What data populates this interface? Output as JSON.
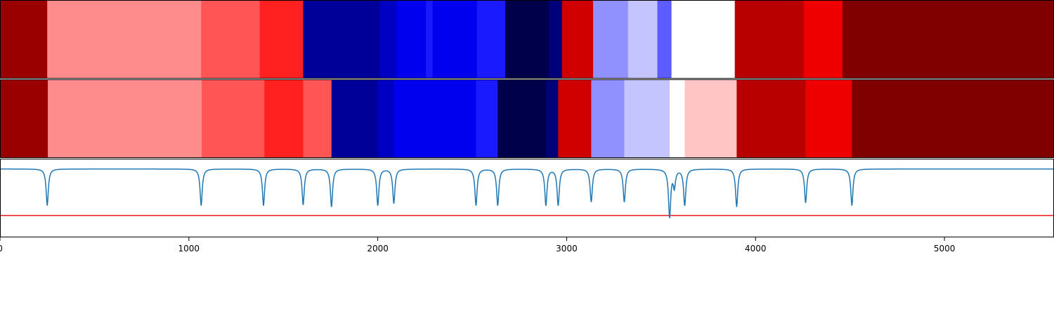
{
  "chart_data": {
    "type": "heatmap",
    "title": "",
    "xlabel": "",
    "ylabel": "",
    "xlim": [
      0,
      5580
    ],
    "x_ticks": [
      0,
      1000,
      2000,
      3000,
      4000,
      5000
    ],
    "x_tick_labels": [
      "0",
      "1000",
      "2000",
      "3000",
      "4000",
      "5000"
    ],
    "grid": false,
    "tracks": [
      {
        "segments": [
          {
            "start": 0,
            "end": 250,
            "color": "#9b0000"
          },
          {
            "start": 250,
            "end": 1065,
            "color": "#ff8c8c"
          },
          {
            "start": 1065,
            "end": 1375,
            "color": "#ff5555"
          },
          {
            "start": 1375,
            "end": 1605,
            "color": "#ff2020"
          },
          {
            "start": 1605,
            "end": 2010,
            "color": "#000099"
          },
          {
            "start": 2010,
            "end": 2100,
            "color": "#0000c2"
          },
          {
            "start": 2100,
            "end": 2255,
            "color": "#0000ee"
          },
          {
            "start": 2255,
            "end": 2290,
            "color": "#1a1aff"
          },
          {
            "start": 2290,
            "end": 2525,
            "color": "#0000ee"
          },
          {
            "start": 2525,
            "end": 2675,
            "color": "#1a1aff"
          },
          {
            "start": 2675,
            "end": 2905,
            "color": "#00004a"
          },
          {
            "start": 2905,
            "end": 2975,
            "color": "#000078"
          },
          {
            "start": 2975,
            "end": 3140,
            "color": "#d00000"
          },
          {
            "start": 3140,
            "end": 3325,
            "color": "#9090ff"
          },
          {
            "start": 3325,
            "end": 3480,
            "color": "#c4c4ff"
          },
          {
            "start": 3480,
            "end": 3555,
            "color": "#5c5cff"
          },
          {
            "start": 3555,
            "end": 3890,
            "color": "#ffffff"
          },
          {
            "start": 3890,
            "end": 4255,
            "color": "#b80000"
          },
          {
            "start": 4255,
            "end": 4460,
            "color": "#ee0000"
          },
          {
            "start": 4460,
            "end": 5580,
            "color": "#800000"
          }
        ]
      },
      {
        "segments": [
          {
            "start": 0,
            "end": 253,
            "color": "#9b0000"
          },
          {
            "start": 253,
            "end": 1068,
            "color": "#ff8c8c"
          },
          {
            "start": 1068,
            "end": 1400,
            "color": "#ff5555"
          },
          {
            "start": 1400,
            "end": 1605,
            "color": "#ff2020"
          },
          {
            "start": 1605,
            "end": 1755,
            "color": "#ff5555"
          },
          {
            "start": 1755,
            "end": 2000,
            "color": "#000099"
          },
          {
            "start": 2000,
            "end": 2085,
            "color": "#0000c2"
          },
          {
            "start": 2085,
            "end": 2520,
            "color": "#0000ee"
          },
          {
            "start": 2520,
            "end": 2635,
            "color": "#1a1aff"
          },
          {
            "start": 2635,
            "end": 2890,
            "color": "#00004a"
          },
          {
            "start": 2890,
            "end": 2955,
            "color": "#000078"
          },
          {
            "start": 2955,
            "end": 3130,
            "color": "#d00000"
          },
          {
            "start": 3130,
            "end": 3305,
            "color": "#9090ff"
          },
          {
            "start": 3305,
            "end": 3545,
            "color": "#c4c4ff"
          },
          {
            "start": 3545,
            "end": 3625,
            "color": "#ffffff"
          },
          {
            "start": 3625,
            "end": 3900,
            "color": "#ffc4c4"
          },
          {
            "start": 3900,
            "end": 4265,
            "color": "#b80000"
          },
          {
            "start": 4265,
            "end": 4510,
            "color": "#ee0000"
          },
          {
            "start": 4510,
            "end": 5580,
            "color": "#800000"
          }
        ]
      }
    ],
    "signal_panel": {
      "ylim": [
        -1.0,
        0.15
      ],
      "threshold": -0.68,
      "threshold_color": "#e8161b",
      "line_color": "#1f77b4",
      "baseline": 0.0,
      "dips": [
        {
          "x": 250,
          "depth": 0.53
        },
        {
          "x": 1065,
          "depth": 0.53
        },
        {
          "x": 1395,
          "depth": 0.53
        },
        {
          "x": 1605,
          "depth": 0.52
        },
        {
          "x": 1755,
          "depth": 0.55
        },
        {
          "x": 2000,
          "depth": 0.53
        },
        {
          "x": 2085,
          "depth": 0.5
        },
        {
          "x": 2520,
          "depth": 0.53
        },
        {
          "x": 2635,
          "depth": 0.53
        },
        {
          "x": 2890,
          "depth": 0.53
        },
        {
          "x": 2955,
          "depth": 0.53
        },
        {
          "x": 3130,
          "depth": 0.48
        },
        {
          "x": 3305,
          "depth": 0.48
        },
        {
          "x": 3545,
          "depth": 0.7
        },
        {
          "x": 3570,
          "depth": 0.25
        },
        {
          "x": 3625,
          "depth": 0.53
        },
        {
          "x": 3900,
          "depth": 0.55
        },
        {
          "x": 4265,
          "depth": 0.49
        },
        {
          "x": 4510,
          "depth": 0.53
        }
      ]
    }
  }
}
